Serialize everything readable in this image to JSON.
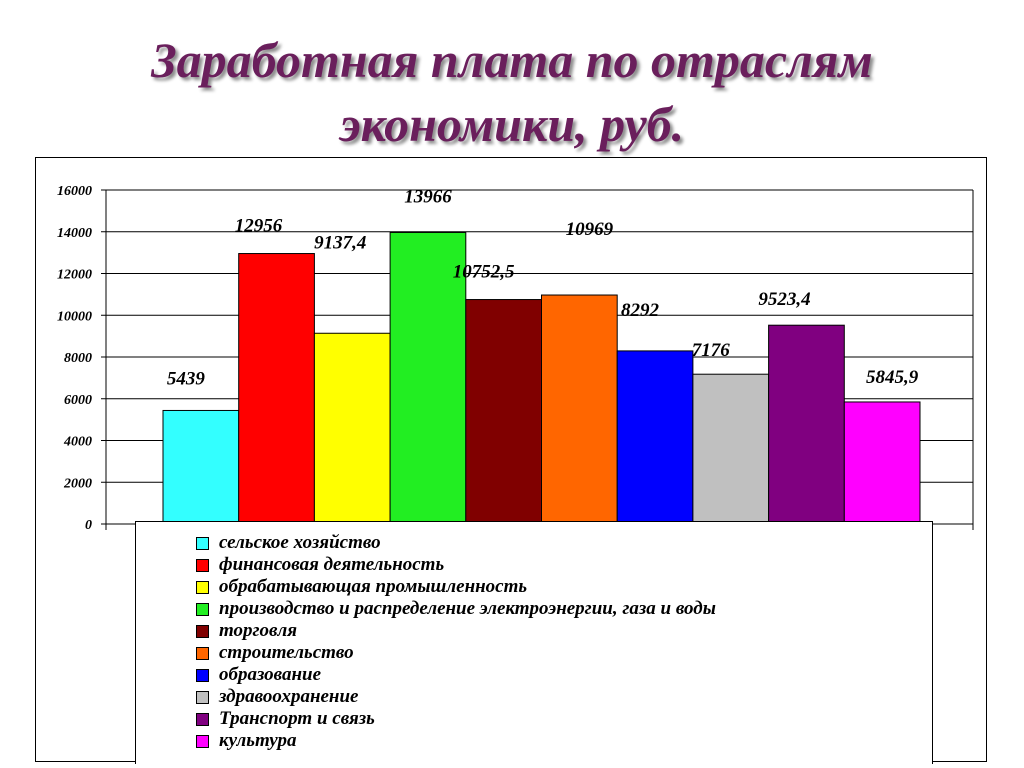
{
  "slide": {
    "title_line1": "Заработная плата по отраслям",
    "title_line2": "экономики, руб."
  },
  "chart_data": {
    "type": "bar",
    "title": "",
    "xlabel": "",
    "ylabel": "",
    "ylim": [
      0,
      16000
    ],
    "yticks": [
      "0",
      "2000",
      "4000",
      "6000",
      "8000",
      "10000",
      "12000",
      "14000",
      "16000"
    ],
    "grid": true,
    "legend_position": "bottom",
    "series": [
      {
        "name": "сельское хозяйство",
        "value": 5439,
        "label": "5439",
        "color": "#33ffff"
      },
      {
        "name": "финансовая деятельность",
        "value": 12956,
        "label": "12956",
        "color": "#ff0000"
      },
      {
        "name": "обрабатывающая промышленность",
        "value": 9137.4,
        "label": "9137,4",
        "color": "#ffff00"
      },
      {
        "name": "производство и распределение электроэнергии, газа и воды",
        "value": 13966,
        "label": "13966",
        "color": "#22ee22"
      },
      {
        "name": "торговля",
        "value": 10752.5,
        "label": "10752,5",
        "color": "#800000"
      },
      {
        "name": "строительство",
        "value": 10969,
        "label": "10969",
        "color": "#ff6600"
      },
      {
        "name": "образование",
        "value": 8292,
        "label": "8292",
        "color": "#0000ff"
      },
      {
        "name": "здравоохранение",
        "value": 7176,
        "label": "7176",
        "color": "#c0c0c0"
      },
      {
        "name": "Транспорт и связь",
        "value": 9523.4,
        "label": "9523,4",
        "color": "#800080"
      },
      {
        "name": "культура",
        "value": 5845.9,
        "label": "5845,9",
        "color": "#ff00ff"
      }
    ]
  }
}
